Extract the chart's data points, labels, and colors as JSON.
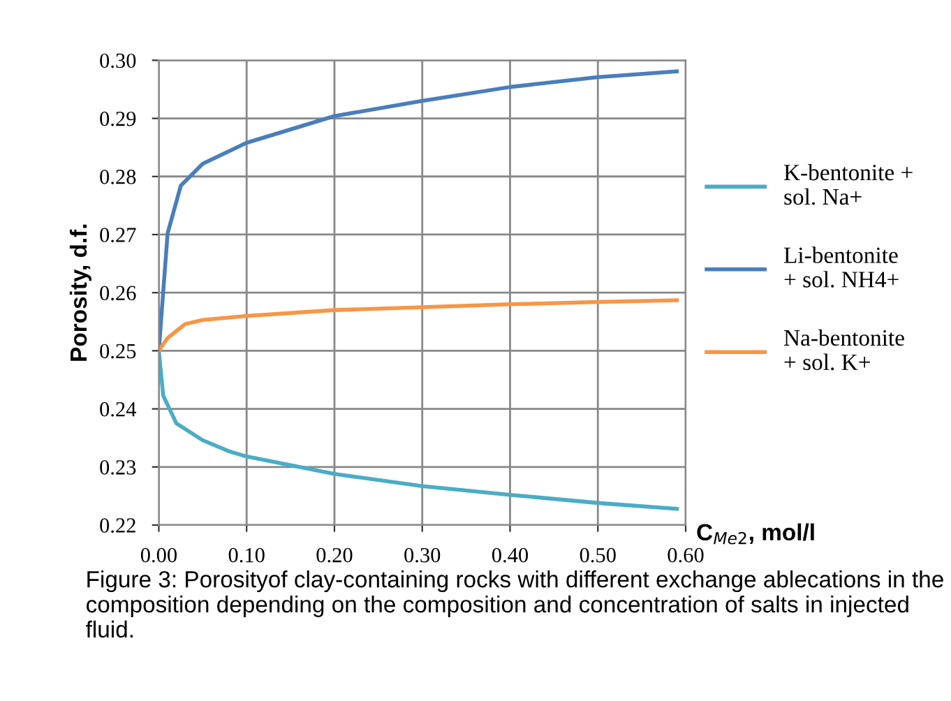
{
  "chart_data": {
    "type": "line",
    "xlabel": "C$_{Me2}$, mol/l",
    "ylabel": "Porosity, d.f.",
    "xlim": [
      0,
      0.6
    ],
    "ylim": [
      0.22,
      0.3
    ],
    "xticks": [
      {
        "value": 0,
        "label": "0.00"
      },
      {
        "value": 0.1,
        "label": "0.10"
      },
      {
        "value": 0.2,
        "label": "0.20"
      },
      {
        "value": 0.3,
        "label": "0.30"
      },
      {
        "value": 0.4,
        "label": "0.40"
      },
      {
        "value": 0.5,
        "label": "0.50"
      },
      {
        "value": 0.6,
        "label": "0.60"
      }
    ],
    "yticks": [
      {
        "value": 0.22,
        "label": "0.22"
      },
      {
        "value": 0.23,
        "label": "0.23"
      },
      {
        "value": 0.24,
        "label": "0.24"
      },
      {
        "value": 0.25,
        "label": "0.25"
      },
      {
        "value": 0.26,
        "label": "0.26"
      },
      {
        "value": 0.27,
        "label": "0.27"
      },
      {
        "value": 0.28,
        "label": "0.28"
      },
      {
        "value": 0.29,
        "label": "0.29"
      },
      {
        "value": 0.3,
        "label": "0.30"
      }
    ],
    "grid": true,
    "legend": "right",
    "marker": "none",
    "line_style": "solid",
    "series": [
      {
        "name": "K-bentonite +\nsol. Na+",
        "color": "#4bacc6",
        "x": [
          0,
          0.005,
          0.02,
          0.05,
          0.08,
          0.1,
          0.2,
          0.3,
          0.4,
          0.5,
          0.59
        ],
        "values": [
          0.25,
          0.2423,
          0.2375,
          0.2346,
          0.2327,
          0.2318,
          0.2288,
          0.2267,
          0.2252,
          0.2238,
          0.2228
        ]
      },
      {
        "name": "Li-bentonite\n+ sol. NH4+",
        "color": "#4a7ebb",
        "x": [
          0,
          0.01,
          0.025,
          0.05,
          0.1,
          0.2,
          0.3,
          0.4,
          0.5,
          0.59
        ],
        "values": [
          0.25,
          0.2702,
          0.2784,
          0.2822,
          0.2858,
          0.2904,
          0.293,
          0.2954,
          0.2971,
          0.2981
        ]
      },
      {
        "name": "Na-bentonite\n+ sol. K+",
        "color": "#f79646",
        "x": [
          0,
          0.01,
          0.03,
          0.05,
          0.1,
          0.2,
          0.3,
          0.4,
          0.5,
          0.59
        ],
        "values": [
          0.25,
          0.2522,
          0.2546,
          0.2553,
          0.256,
          0.257,
          0.2575,
          0.258,
          0.2584,
          0.2587
        ]
      }
    ],
    "annotations": [
      "Figure 3: Porosityof clay-containing rocks with different exchange ablecations in the composition depending on the composition and concentration of salts in injected fluid."
    ]
  }
}
